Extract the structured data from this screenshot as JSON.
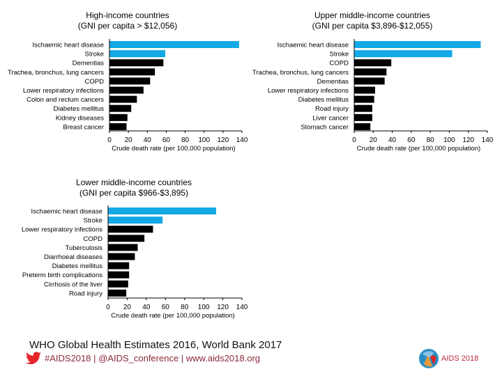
{
  "chart_data": [
    {
      "type": "bar",
      "orientation": "horizontal",
      "title": [
        "High-income countries",
        "(GNI per capita > $12,056)"
      ],
      "xlabel": "Crude death rate (per 100,000 population)",
      "xlim": [
        0,
        140
      ],
      "xticks": [
        0,
        20,
        40,
        60,
        80,
        100,
        120,
        140
      ],
      "categories": [
        "Ischaemic heart disease",
        "Stroke",
        "Dementias",
        "Trachea, bronchus, lung cancers",
        "COPD",
        "Lower respiratory infections",
        "Colon and rectum cancers",
        "Diabetes mellitus",
        "Kidney diseases",
        "Breast cancer"
      ],
      "values": [
        137,
        59,
        57,
        48,
        43,
        36,
        29,
        23,
        19,
        18
      ],
      "colors": [
        "#12a9e6",
        "#12a9e6",
        "#000000",
        "#000000",
        "#000000",
        "#000000",
        "#000000",
        "#000000",
        "#000000",
        "#000000"
      ]
    },
    {
      "type": "bar",
      "orientation": "horizontal",
      "title": [
        "Upper middle-income countries",
        "(GNI per capita $3,896-$12,055)"
      ],
      "xlabel": "Crude death rate (per 100,000 population)",
      "xlim": [
        0,
        140
      ],
      "xticks": [
        0,
        20,
        40,
        60,
        80,
        100,
        120,
        140
      ],
      "categories": [
        "Ischaemic heart disease",
        "Stroke",
        "COPD",
        "Trachea, bronchus, lung cancers",
        "Dementias",
        "Lower respiratory infections",
        "Diabetes mellitus",
        "Road injury",
        "Liver cancer",
        "Stomach cancer"
      ],
      "values": [
        133,
        103,
        39,
        34,
        32,
        22,
        21,
        19,
        19,
        17
      ],
      "colors": [
        "#12a9e6",
        "#12a9e6",
        "#000000",
        "#000000",
        "#000000",
        "#000000",
        "#000000",
        "#000000",
        "#000000",
        "#000000"
      ]
    },
    {
      "type": "bar",
      "orientation": "horizontal",
      "title": [
        "Lower middle-income countries",
        "(GNI per capita $966-$3,895)"
      ],
      "xlabel": "Crude death rate (per 100,000 population)",
      "xlim": [
        0,
        140
      ],
      "xticks": [
        0,
        20,
        40,
        60,
        80,
        100,
        120,
        140
      ],
      "categories": [
        "Ischaemic heart disease",
        "Stroke",
        "Lower respiratory infections",
        "COPD",
        "Tuberculosis",
        "Diarrhoeal diseases",
        "Diabetes mellitus",
        "Preterm birth complications",
        "Cirrhosis of the liver",
        "Road injury"
      ],
      "values": [
        113,
        57,
        47,
        38,
        31,
        28,
        22,
        22,
        21,
        19
      ],
      "colors": [
        "#12a9e6",
        "#12a9e6",
        "#000000",
        "#000000",
        "#000000",
        "#000000",
        "#000000",
        "#000000",
        "#000000",
        "#000000"
      ]
    }
  ],
  "footer": {
    "source": "WHO Global Health Estimates 2016, World Bank 2017",
    "links": "#AIDS2018 | @AIDS_conference | www.aids2018.org",
    "twitter_icon": "twitter-bird-icon",
    "twitter_color": "#e4262b",
    "logo_text": "AIDS 2018"
  }
}
